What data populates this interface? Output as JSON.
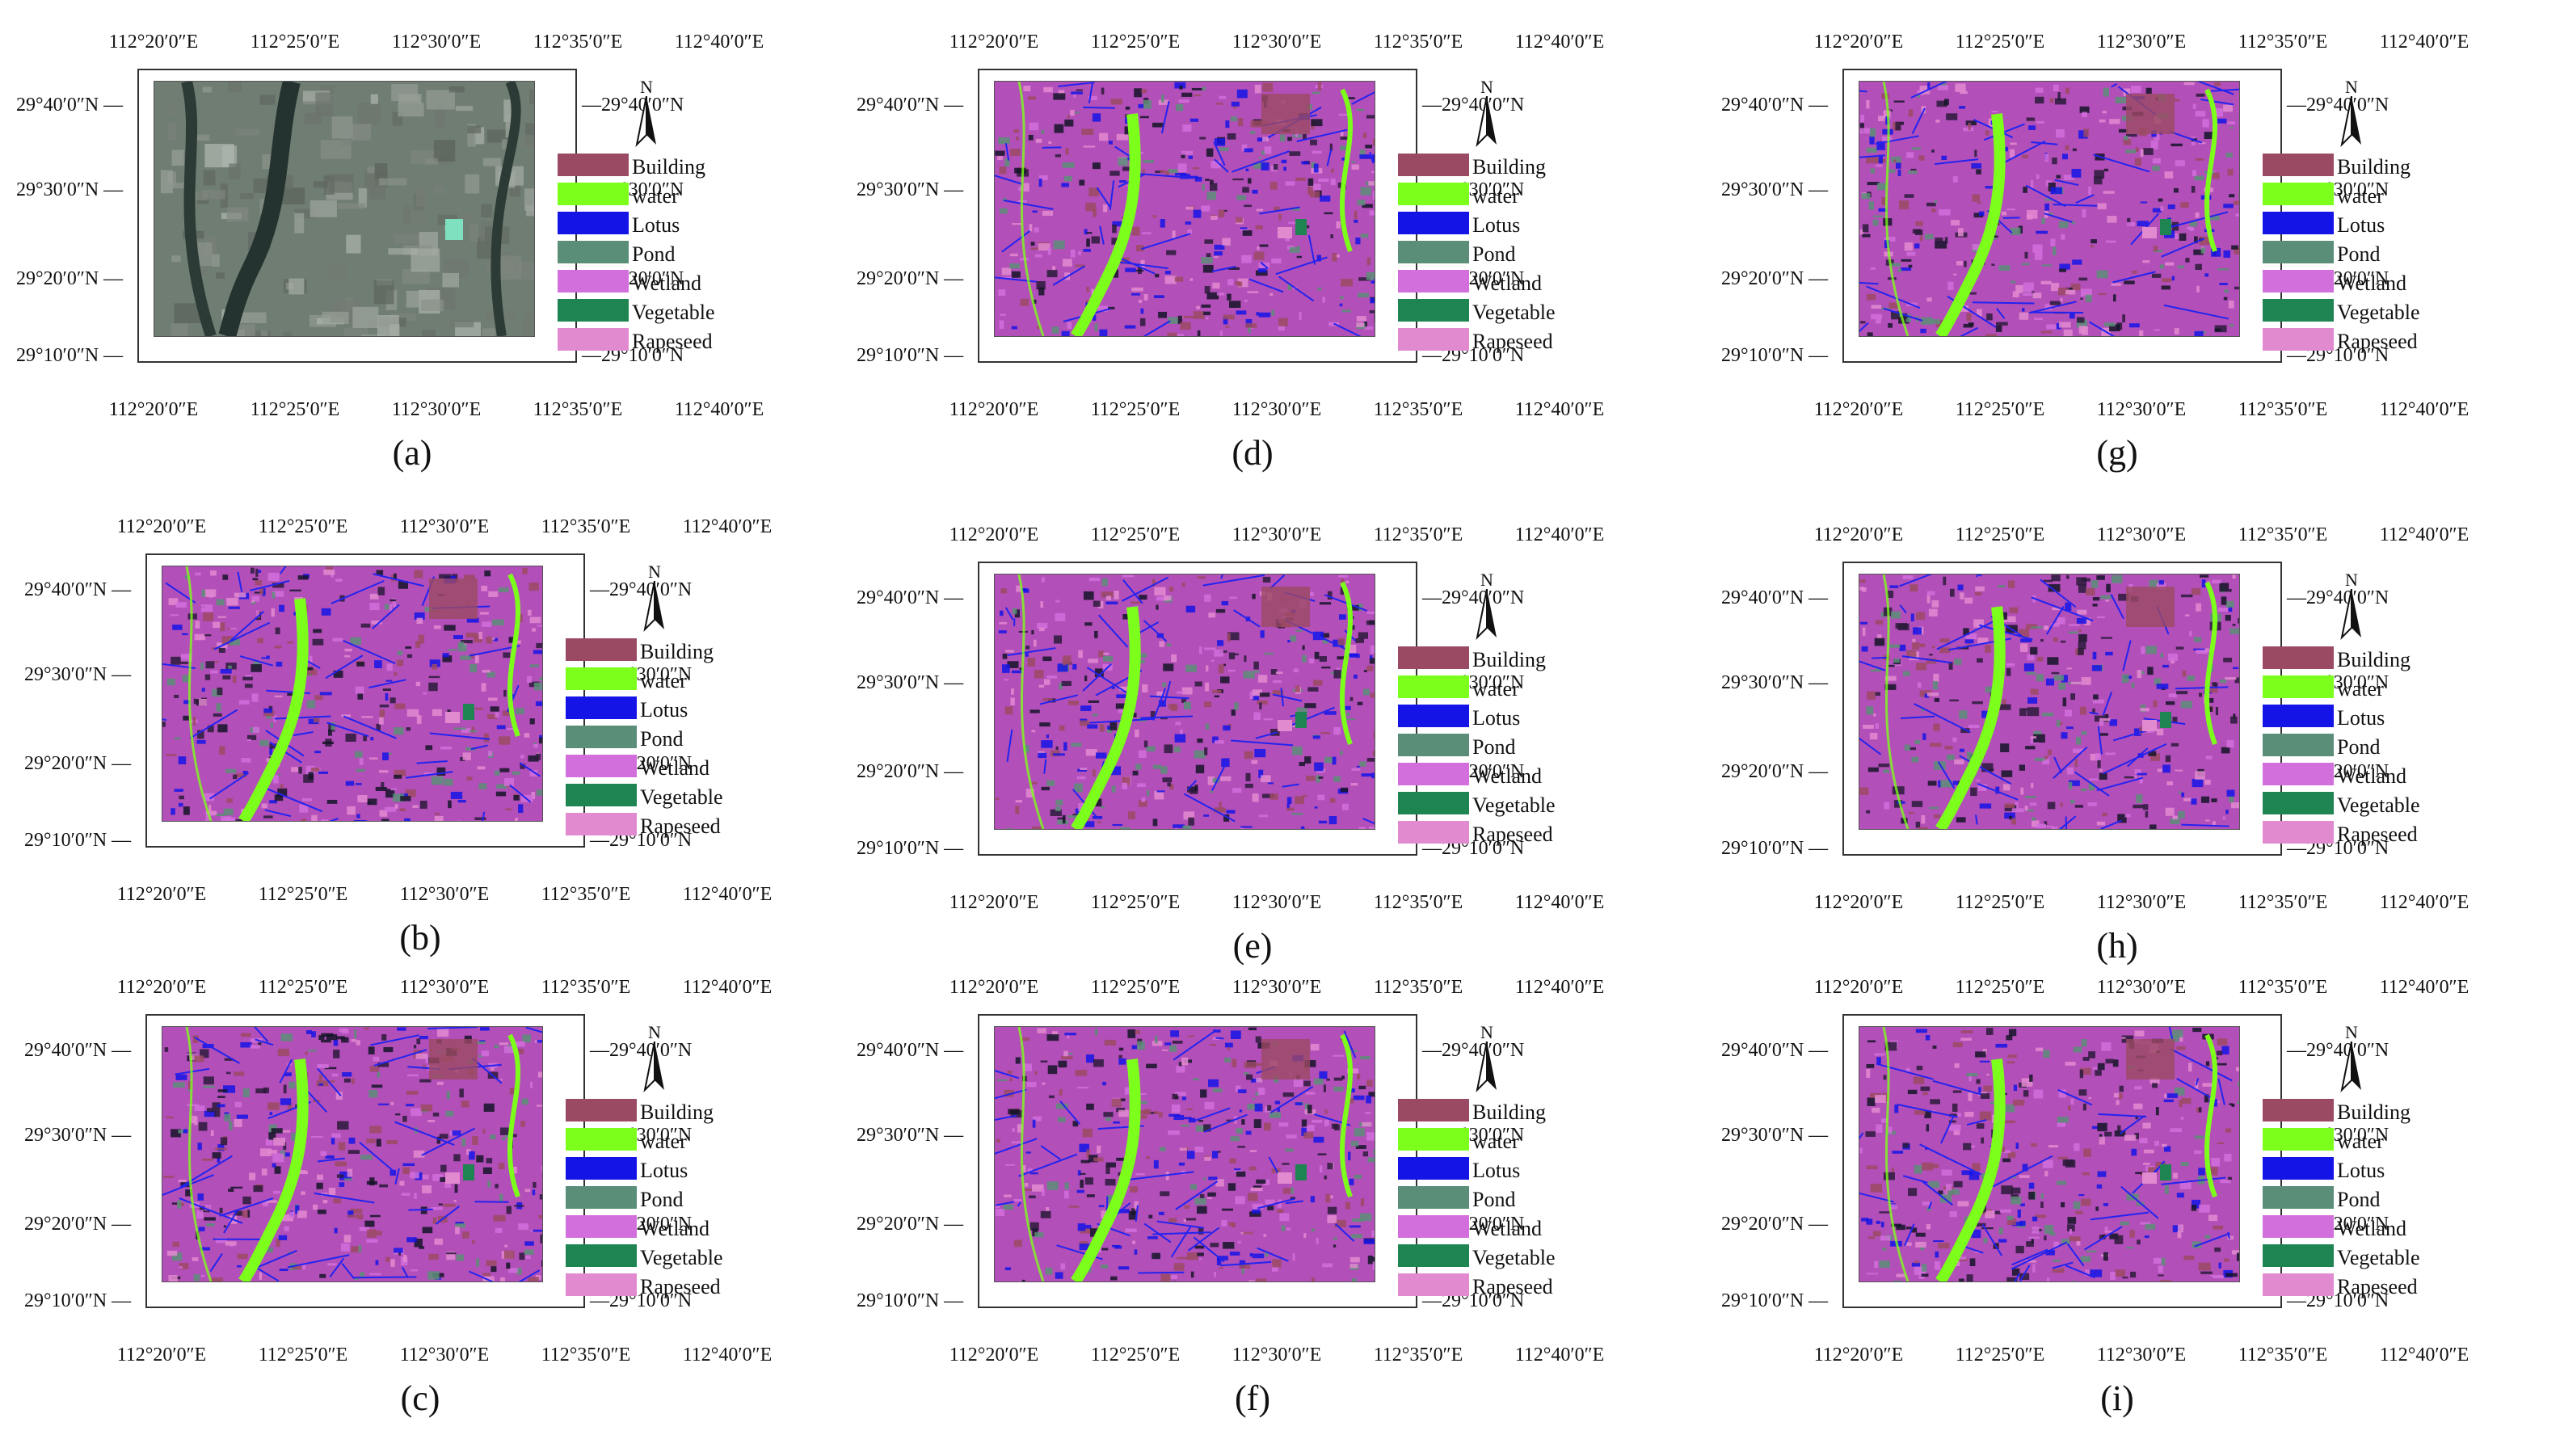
{
  "figure": {
    "panels": [
      {
        "id": "a",
        "caption": "(a)",
        "map_type": "satellite"
      },
      {
        "id": "b",
        "caption": "(b)",
        "map_type": "classified"
      },
      {
        "id": "c",
        "caption": "(c)",
        "map_type": "classified"
      },
      {
        "id": "d",
        "caption": "(d)",
        "map_type": "classified"
      },
      {
        "id": "e",
        "caption": "(e)",
        "map_type": "classified"
      },
      {
        "id": "f",
        "caption": "(f)",
        "map_type": "classified"
      },
      {
        "id": "g",
        "caption": "(g)",
        "map_type": "classified"
      },
      {
        "id": "h",
        "caption": "(h)",
        "map_type": "classified"
      },
      {
        "id": "i",
        "caption": "(i)",
        "map_type": "classified"
      }
    ],
    "lon_ticks": [
      "112°20′0″E",
      "112°25′0″E",
      "112°30′0″E",
      "112°35′0″E",
      "112°40′0″E"
    ],
    "lat_ticks": [
      "29°40′0″N",
      "29°30′0″N",
      "29°20′0″N",
      "29°10′0″N"
    ],
    "north_label": "N",
    "legend": [
      {
        "label": "Building",
        "color": "#9b4a63"
      },
      {
        "label": "water",
        "color": "#7cff1a"
      },
      {
        "label": "Lotus",
        "color": "#1414e6"
      },
      {
        "label": "Pond",
        "color": "#5a8e78"
      },
      {
        "label": "Wetland",
        "color": "#d26fdc"
      },
      {
        "label": "Vegetable",
        "color": "#1e8552"
      },
      {
        "label": "Rapeseed",
        "color": "#e28ad0"
      }
    ]
  }
}
